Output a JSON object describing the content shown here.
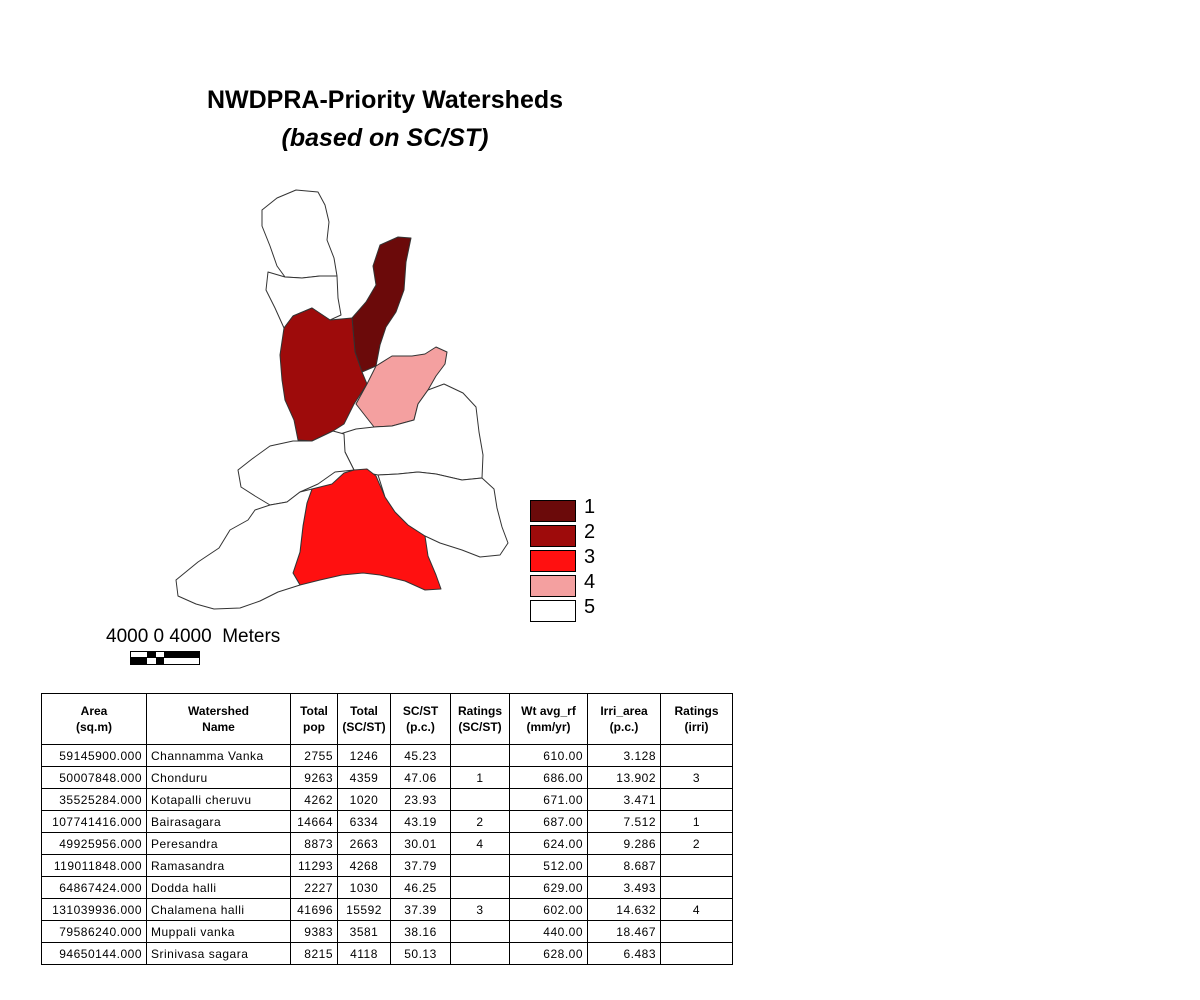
{
  "title": "NWDPRA-Priority Watersheds",
  "subtitle": "(based on SC/ST)",
  "colors": {
    "rating_1": "#6b0a0a",
    "rating_2": "#9e0b0b",
    "rating_3": "#ff1010",
    "rating_4": "#f4a0a0",
    "rating_5": "#ffffff"
  },
  "legend": [
    {
      "label": "1",
      "color": "#6b0a0a"
    },
    {
      "label": "2",
      "color": "#9e0b0b"
    },
    {
      "label": "3",
      "color": "#ff1010"
    },
    {
      "label": "4",
      "color": "#f4a0a0"
    },
    {
      "label": "5",
      "color": "#ffffff"
    }
  ],
  "scale_bar": {
    "label": "4000 0 4000  Meters"
  },
  "table": {
    "headers": [
      "Area\n(sq.m)",
      "Watershed\nName",
      "Total\npop",
      "Total\n(SC/ST)",
      "SC/ST\n(p.c.)",
      "Ratings\n(SC/ST)",
      "Wt avg_rf\n(mm/yr)",
      "Irri_area\n(p.c.)",
      "Ratings\n(irri)"
    ],
    "rows": [
      [
        "59145900.000",
        "Channamma Vanka",
        "2755",
        "1246",
        "45.23",
        "",
        "610.00",
        "3.128",
        ""
      ],
      [
        "50007848.000",
        "Chonduru",
        "9263",
        "4359",
        "47.06",
        "1",
        "686.00",
        "13.902",
        "3"
      ],
      [
        "35525284.000",
        "Kotapalli cheruvu",
        "4262",
        "1020",
        "23.93",
        "",
        "671.00",
        "3.471",
        ""
      ],
      [
        "107741416.000",
        "Bairasagara",
        "14664",
        "6334",
        "43.19",
        "2",
        "687.00",
        "7.512",
        "1"
      ],
      [
        "49925956.000",
        "Peresandra",
        "8873",
        "2663",
        "30.01",
        "4",
        "624.00",
        "9.286",
        "2"
      ],
      [
        "119011848.000",
        "Ramasandra",
        "11293",
        "4268",
        "37.79",
        "",
        "512.00",
        "8.687",
        ""
      ],
      [
        "64867424.000",
        "Dodda halli",
        "2227",
        "1030",
        "46.25",
        "",
        "629.00",
        "3.493",
        ""
      ],
      [
        "131039936.000",
        "Chalamena halli",
        "41696",
        "15592",
        "37.39",
        "3",
        "602.00",
        "14.632",
        "4"
      ],
      [
        "79586240.000",
        "Muppali vanka",
        "9383",
        "3581",
        "38.16",
        "",
        "440.00",
        "18.467",
        ""
      ],
      [
        "94650144.000",
        "Srinivasa sagara",
        "8215",
        "4118",
        "50.13",
        "",
        "628.00",
        "6.483",
        ""
      ]
    ]
  }
}
